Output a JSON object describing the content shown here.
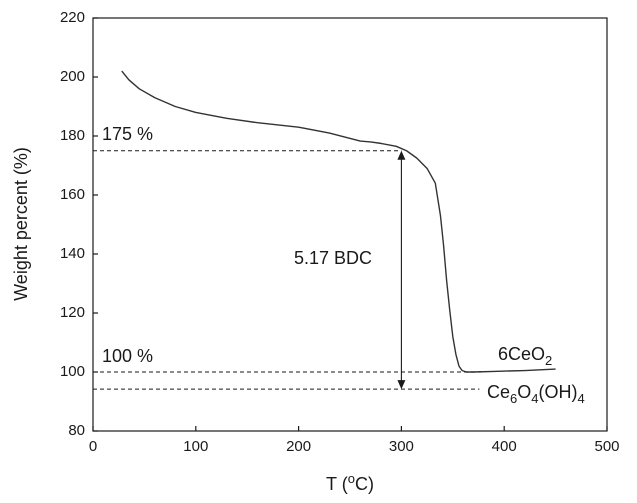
{
  "chart_data": {
    "type": "line",
    "title": "",
    "xlabel": {
      "main": "T (",
      "sup": "o",
      "tail": "C)"
    },
    "ylabel": "Weight percent (%)",
    "xlim": [
      0,
      500
    ],
    "ylim": [
      80,
      220
    ],
    "xticks": [
      0,
      100,
      200,
      300,
      400,
      500
    ],
    "yticks": [
      80,
      100,
      120,
      140,
      160,
      180,
      200,
      220
    ],
    "grid": false,
    "series": [
      {
        "color": "#333333",
        "x": [
          28,
          35,
          45,
          60,
          80,
          100,
          130,
          160,
          200,
          230,
          260,
          270,
          280,
          295,
          305,
          315,
          325,
          333,
          338,
          341,
          344,
          347,
          350,
          353,
          356,
          359,
          363,
          370,
          390,
          420,
          450
        ],
        "y": [
          202,
          199,
          196,
          193,
          190,
          188,
          186,
          184.5,
          183,
          181,
          178.3,
          178,
          177.5,
          176.5,
          175,
          172.5,
          169,
          164,
          153,
          143,
          131,
          121,
          112,
          106,
          102,
          100.5,
          100,
          100,
          100.2,
          100.5,
          101
        ]
      }
    ],
    "annotations": {
      "level_175": {
        "label": "175 %",
        "y": 175
      },
      "level_100": {
        "label": "100 %",
        "y": 100
      },
      "level_ce6": {
        "y": 94.2,
        "label_parts": [
          "Ce",
          "6",
          "O",
          "4",
          "(OH)",
          "4"
        ]
      },
      "ceo2_label_parts": [
        "6CeO",
        "2"
      ],
      "span_label": "5.17 BDC",
      "span_x": 300,
      "span_from": 175,
      "span_to": 94.2
    }
  }
}
